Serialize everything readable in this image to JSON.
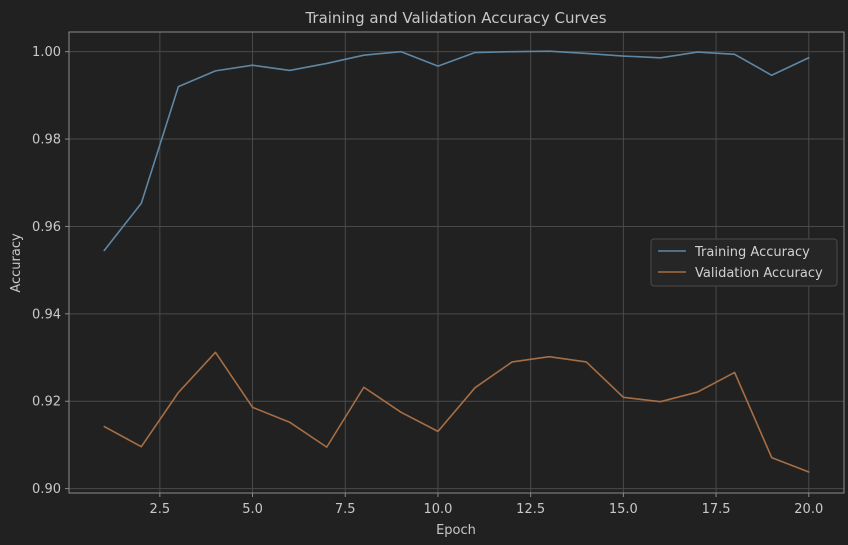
{
  "chart_data": {
    "type": "line",
    "title": "Training and Validation Accuracy Curves",
    "xlabel": "Epoch",
    "ylabel": "Accuracy",
    "xlim": [
      0.05,
      20.95
    ],
    "ylim": [
      0.899,
      1.0045
    ],
    "xticks": [
      2.5,
      5.0,
      7.5,
      10.0,
      12.5,
      15.0,
      17.5,
      20.0
    ],
    "xtick_labels": [
      "2.5",
      "5.0",
      "7.5",
      "10.0",
      "12.5",
      "15.0",
      "17.5",
      "20.0"
    ],
    "yticks": [
      0.9,
      0.92,
      0.94,
      0.96,
      0.98,
      1.0
    ],
    "ytick_labels": [
      "0.90",
      "0.92",
      "0.94",
      "0.96",
      "0.98",
      "1.00"
    ],
    "grid": true,
    "legend_position": "right",
    "x": [
      1,
      2,
      3,
      4,
      5,
      6,
      7,
      8,
      9,
      10,
      11,
      12,
      13,
      14,
      15,
      16,
      17,
      18,
      19,
      20
    ],
    "series": [
      {
        "name": "Training Accuracy",
        "color": "#5f87a3",
        "values": [
          0.9545,
          0.9653,
          0.992,
          0.9956,
          0.9969,
          0.9957,
          0.9973,
          0.9992,
          1.0,
          0.9967,
          0.9998,
          1.0,
          1.0001,
          0.9996,
          0.999,
          0.9986,
          0.9999,
          0.9994,
          0.9946,
          0.9986
        ]
      },
      {
        "name": "Validation Accuracy",
        "color": "#a66e45",
        "values": [
          0.9142,
          0.9096,
          0.922,
          0.9312,
          0.9186,
          0.9152,
          0.9095,
          0.9232,
          0.9175,
          0.9131,
          0.9231,
          0.929,
          0.9302,
          0.929,
          0.9209,
          0.9199,
          0.9221,
          0.9266,
          0.9071,
          0.9038
        ]
      }
    ]
  },
  "colors": {
    "background": "#212121",
    "axes_edge": "#8a8a8a",
    "grid": "#4a4a4a",
    "text": "#c8c8c8",
    "legend_bg": "#262626",
    "legend_edge": "#4a4a4a"
  }
}
